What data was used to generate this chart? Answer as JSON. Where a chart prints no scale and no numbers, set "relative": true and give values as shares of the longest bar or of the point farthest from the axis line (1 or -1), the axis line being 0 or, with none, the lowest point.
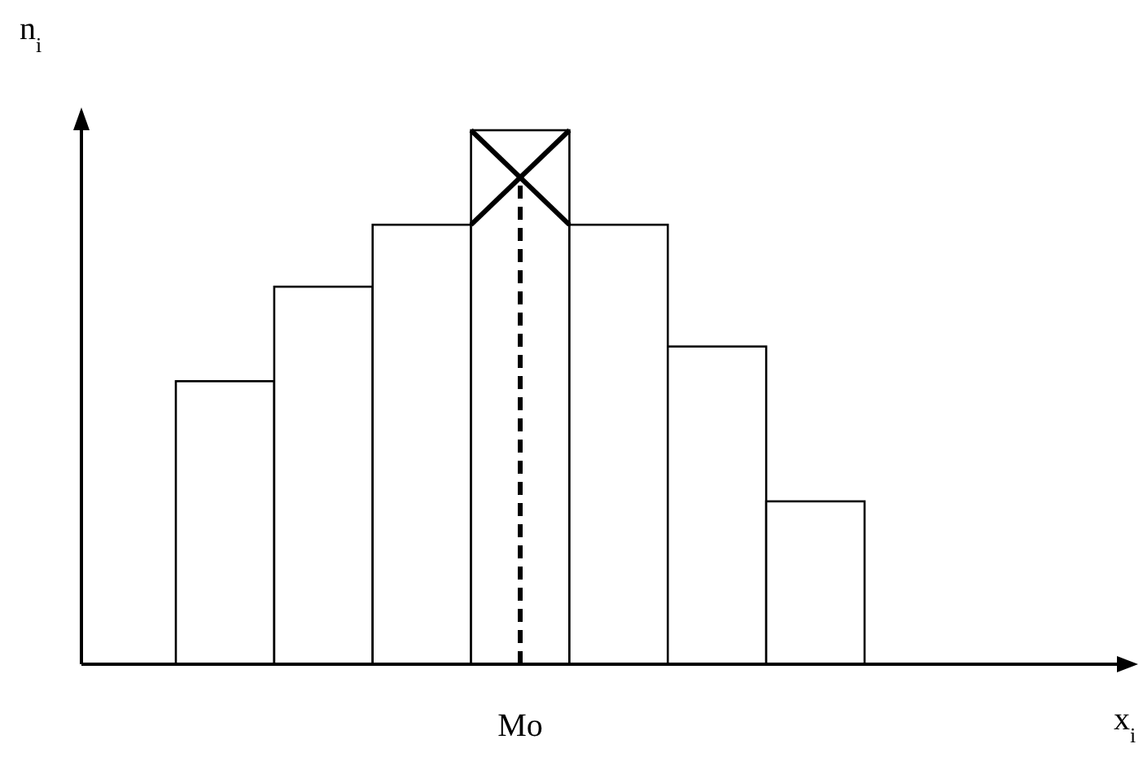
{
  "chart_data": {
    "type": "bar",
    "relative": true,
    "ylabel": "n$_{i}$",
    "categories": [
      null,
      null,
      null,
      null,
      null,
      null,
      null
    ],
    "values": [
      0.53,
      0.707,
      0.823,
      1,
      0.823,
      0.595,
      0.305
    ],
    "color": "#ffffff",
    "annotations": [
      "Mo",
      "x$_{i}$"
    ]
  }
}
